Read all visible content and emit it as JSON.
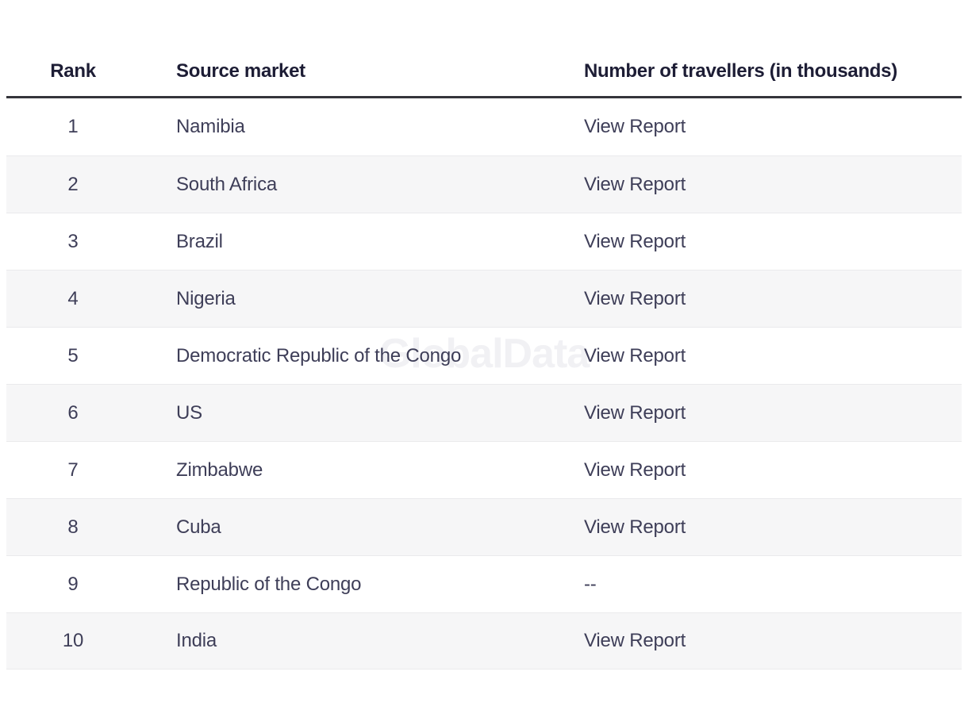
{
  "watermark": {
    "text": "GlobalData"
  },
  "table": {
    "columns": {
      "rank": "Rank",
      "market": "Source market",
      "value": "Number of travellers (in thousands)"
    },
    "rows": [
      {
        "rank": "1",
        "market": "Namibia",
        "value": "View Report"
      },
      {
        "rank": "2",
        "market": "South Africa",
        "value": "View Report"
      },
      {
        "rank": "3",
        "market": "Brazil",
        "value": "View Report"
      },
      {
        "rank": "4",
        "market": "Nigeria",
        "value": "View Report"
      },
      {
        "rank": "5",
        "market": "Democratic Republic of the Congo",
        "value": "View Report"
      },
      {
        "rank": "6",
        "market": "US",
        "value": "View Report"
      },
      {
        "rank": "7",
        "market": "Zimbabwe",
        "value": "View Report"
      },
      {
        "rank": "8",
        "market": "Cuba",
        "value": "View Report"
      },
      {
        "rank": "9",
        "market": "Republic of the Congo",
        "value": "--"
      },
      {
        "rank": "10",
        "market": "India",
        "value": "View Report"
      }
    ]
  },
  "colors": {
    "header_text": "#1d1d35",
    "body_text": "#3e3e58",
    "header_rule": "#35353b",
    "zebra_row": "#f6f6f7",
    "row_divider": "#eaeaec",
    "watermark": "#f1f1f4"
  }
}
